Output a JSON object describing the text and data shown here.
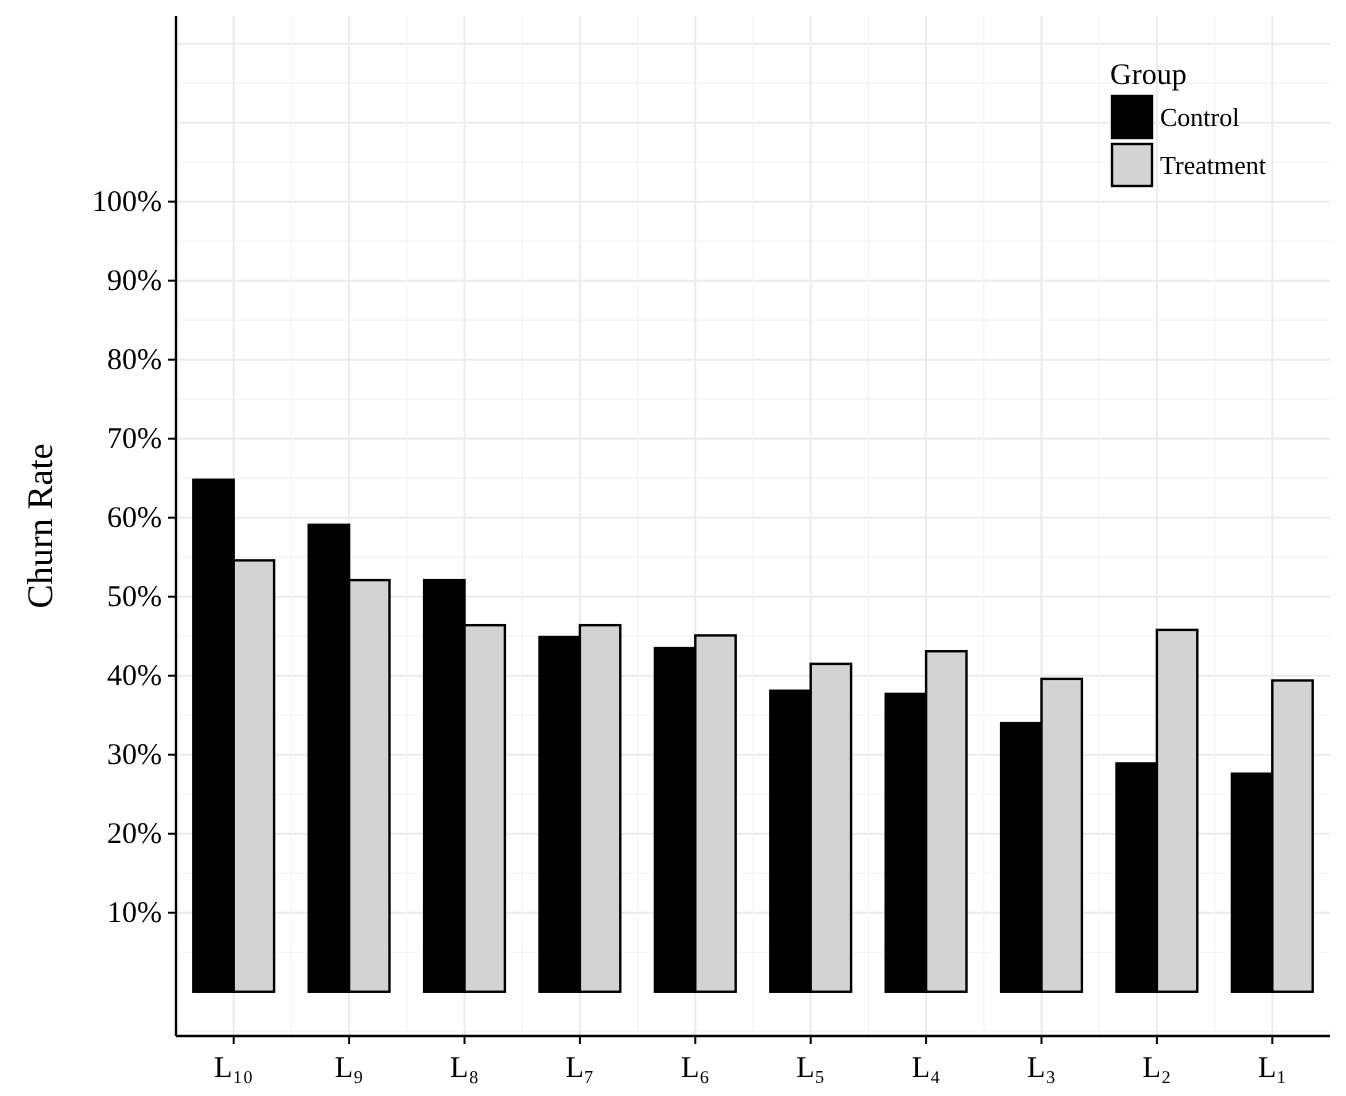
{
  "chart_data": {
    "type": "bar",
    "ylabel": "Churn Rate",
    "legend_title": "Group",
    "categories": [
      "L₁₀",
      "L₉",
      "L₈",
      "L₇",
      "L₆",
      "L₅",
      "L₄",
      "L₃",
      "L₂",
      "L₁"
    ],
    "series": [
      {
        "name": "Control",
        "color": "#000000",
        "values": [
          64.8,
          59.1,
          52.1,
          44.9,
          43.5,
          38.1,
          37.7,
          34.0,
          28.9,
          27.6
        ]
      },
      {
        "name": "Treatment",
        "color": "#d3d3d3",
        "values": [
          54.6,
          52.1,
          46.4,
          46.4,
          45.1,
          41.5,
          43.1,
          39.6,
          45.8,
          39.4
        ]
      }
    ],
    "ylim": [
      -5.6,
      123.5
    ],
    "yticks": [
      {
        "value": 10,
        "label": "10%"
      },
      {
        "value": 20,
        "label": "20%"
      },
      {
        "value": 30,
        "label": "30%"
      },
      {
        "value": 40,
        "label": "40%"
      },
      {
        "value": 50,
        "label": "50%"
      },
      {
        "value": 60,
        "label": "60%"
      },
      {
        "value": 70,
        "label": "70%"
      },
      {
        "value": 80,
        "label": "80%"
      },
      {
        "value": 90,
        "label": "90%"
      },
      {
        "value": 100,
        "label": "100%"
      }
    ],
    "grid": true,
    "legend": "top right"
  }
}
